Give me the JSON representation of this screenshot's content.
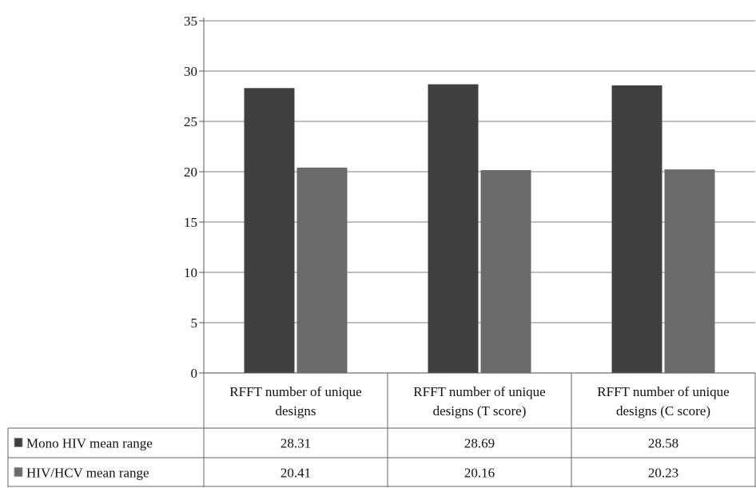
{
  "chart_data": {
    "type": "bar",
    "categories": [
      [
        "RFFT number of unique",
        "designs"
      ],
      [
        "RFFT number of unique",
        "designs (T score)"
      ],
      [
        "RFFT number of unique",
        "designs (C score)"
      ]
    ],
    "series": [
      {
        "name": "Mono HIV mean range",
        "values": [
          28.31,
          28.69,
          28.58
        ],
        "value_labels": [
          "28.31",
          "28.69",
          "28.58"
        ],
        "color": "#404040"
      },
      {
        "name": "HIV/HCV mean range",
        "values": [
          20.41,
          20.16,
          20.23
        ],
        "value_labels": [
          "20.41",
          "20.16",
          "20.23"
        ],
        "color": "#6b6b6b"
      }
    ],
    "ylim": [
      0,
      35
    ],
    "yticks": [
      0,
      5,
      10,
      15,
      20,
      25,
      30,
      35
    ],
    "grid": true,
    "legend": "data-table-left"
  }
}
